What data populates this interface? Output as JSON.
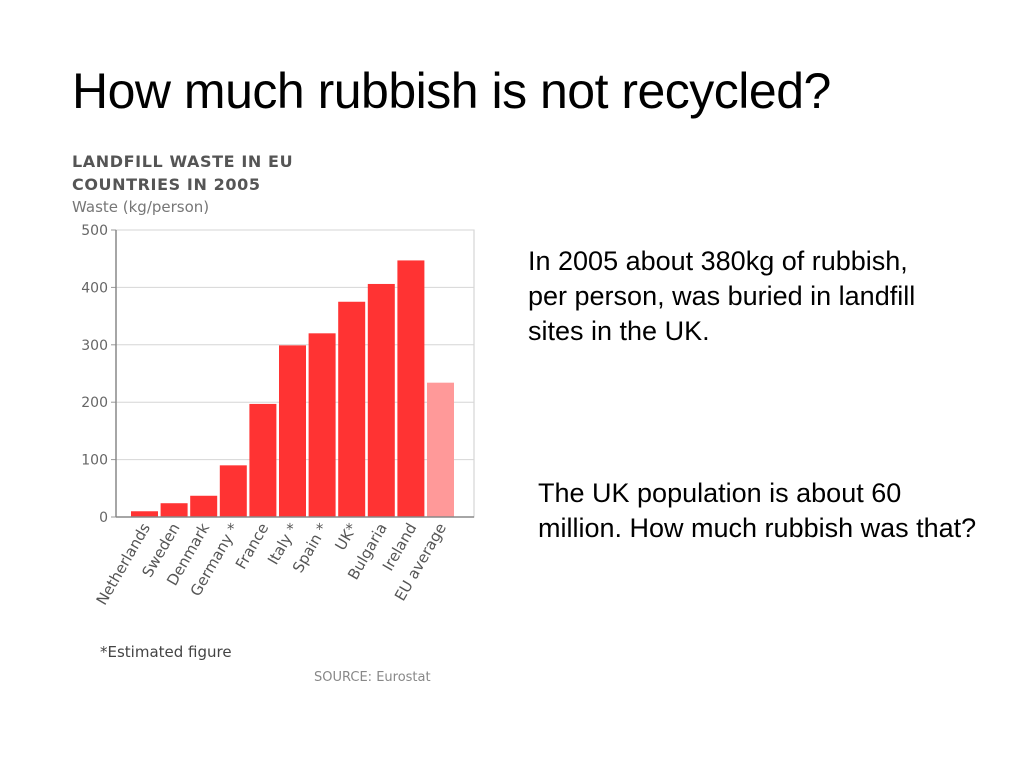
{
  "slide": {
    "title": "How much rubbish is not recycled?",
    "paragraphs": [
      "In 2005 about 380kg of rubbish, per person, was buried in landfill sites in the UK.",
      "The UK population is about 60 million. How much rubbish was that?"
    ]
  },
  "chart_data": {
    "type": "bar",
    "title_lines": [
      "LANDFILL WASTE IN EU",
      "COUNTRIES IN 2005"
    ],
    "ylabel": "Waste (kg/person)",
    "xlabel": "",
    "categories": [
      "Netherlands",
      "Sweden",
      "Denmark",
      "Germany *",
      "France",
      "Italy *",
      "Spain *",
      "UK*",
      "Bulgaria",
      "Ireland",
      "EU average"
    ],
    "values": [
      10,
      24,
      37,
      90,
      197,
      299,
      320,
      375,
      406,
      447,
      234
    ],
    "yticks": [
      "0",
      "100",
      "200",
      "300",
      "400",
      "500"
    ],
    "ylim": [
      0,
      500
    ],
    "grid": true,
    "bar_color": "#ff3333",
    "highlight_color": "#ff9999",
    "highlight_category": "EU average",
    "footnote": "*Estimated figure",
    "source": "SOURCE: Eurostat"
  }
}
